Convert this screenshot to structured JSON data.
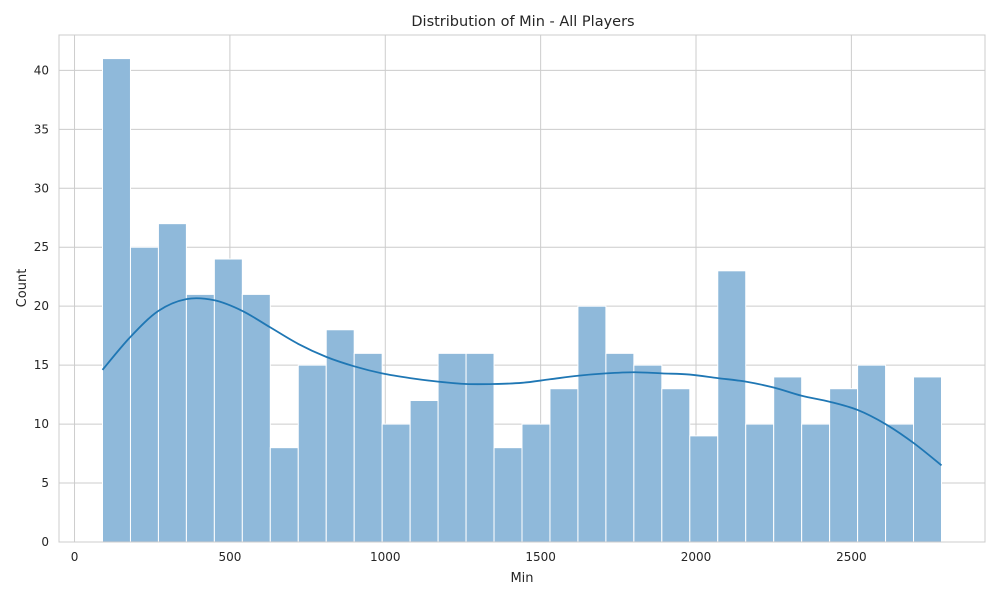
{
  "chart_data": {
    "type": "bar",
    "title": "Distribution of Min - All Players",
    "xlabel": "Min",
    "ylabel": "Count",
    "xlim": [
      -50,
      2930
    ],
    "ylim": [
      0,
      43
    ],
    "x_ticks": [
      0,
      500,
      1000,
      1500,
      2000,
      2500
    ],
    "y_ticks": [
      0,
      5,
      10,
      15,
      20,
      25,
      30,
      35,
      40
    ],
    "grid": true,
    "bin_start": 90,
    "bin_width": 90,
    "values": [
      41,
      25,
      27,
      21,
      24,
      21,
      8,
      15,
      18,
      16,
      10,
      12,
      16,
      16,
      8,
      10,
      13,
      20,
      16,
      15,
      13,
      9,
      23,
      10,
      14,
      10,
      13,
      15,
      10,
      14
    ],
    "kde": {
      "x": [
        90,
        180,
        270,
        360,
        450,
        540,
        630,
        720,
        810,
        900,
        990,
        1080,
        1170,
        1260,
        1350,
        1440,
        1530,
        1620,
        1710,
        1800,
        1890,
        1980,
        2070,
        2160,
        2250,
        2340,
        2430,
        2520,
        2610,
        2700,
        2790
      ],
      "y": [
        14.6,
        17.4,
        19.6,
        20.6,
        20.5,
        19.6,
        18.2,
        16.8,
        15.7,
        14.9,
        14.3,
        13.9,
        13.6,
        13.4,
        13.4,
        13.5,
        13.8,
        14.1,
        14.3,
        14.4,
        14.3,
        14.2,
        13.9,
        13.6,
        13.1,
        12.4,
        11.9,
        11.2,
        10.0,
        8.4,
        6.5
      ]
    },
    "colors": {
      "bar": "#8fb9da",
      "bar_edge": "#ffffff",
      "kde": "#1f77b4",
      "grid": "#cccccc",
      "spine": "#cccccc"
    }
  }
}
